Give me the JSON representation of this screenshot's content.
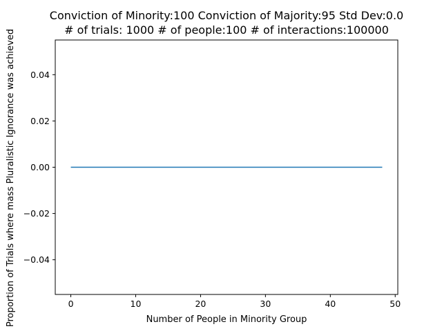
{
  "chart_data": {
    "type": "line",
    "title": [
      "Conviction of Minority:100 Conviction of Majority:95 Std Dev:0.0",
      "# of trials: 1000 # of people:100 # of interactions:100000"
    ],
    "xlabel": "Number of People in Minority Group",
    "ylabel": "Proportion of Trials where mass Pluralistic Ignorance was achieved",
    "xlim": [
      -2.4,
      50.4
    ],
    "ylim": [
      -0.055,
      0.055
    ],
    "x_ticks": [
      0,
      10,
      20,
      30,
      40,
      50
    ],
    "x_tick_labels": [
      "0",
      "10",
      "20",
      "30",
      "40",
      "50"
    ],
    "y_ticks": [
      -0.04,
      -0.02,
      0.0,
      0.02,
      0.04
    ],
    "y_tick_labels": [
      "−0.04",
      "−0.02",
      "0.00",
      "0.02",
      "0.04"
    ],
    "grid": false,
    "series": [
      {
        "color": "#1f77b4",
        "x": [
          0,
          1,
          2,
          3,
          4,
          5,
          6,
          7,
          8,
          9,
          10,
          11,
          12,
          13,
          14,
          15,
          16,
          17,
          18,
          19,
          20,
          21,
          22,
          23,
          24,
          25,
          26,
          27,
          28,
          29,
          30,
          31,
          32,
          33,
          34,
          35,
          36,
          37,
          38,
          39,
          40,
          41,
          42,
          43,
          44,
          45,
          46,
          47,
          48
        ],
        "y": [
          0,
          0,
          0,
          0,
          0,
          0,
          0,
          0,
          0,
          0,
          0,
          0,
          0,
          0,
          0,
          0,
          0,
          0,
          0,
          0,
          0,
          0,
          0,
          0,
          0,
          0,
          0,
          0,
          0,
          0,
          0,
          0,
          0,
          0,
          0,
          0,
          0,
          0,
          0,
          0,
          0,
          0,
          0,
          0,
          0,
          0,
          0,
          0,
          0
        ]
      }
    ]
  }
}
